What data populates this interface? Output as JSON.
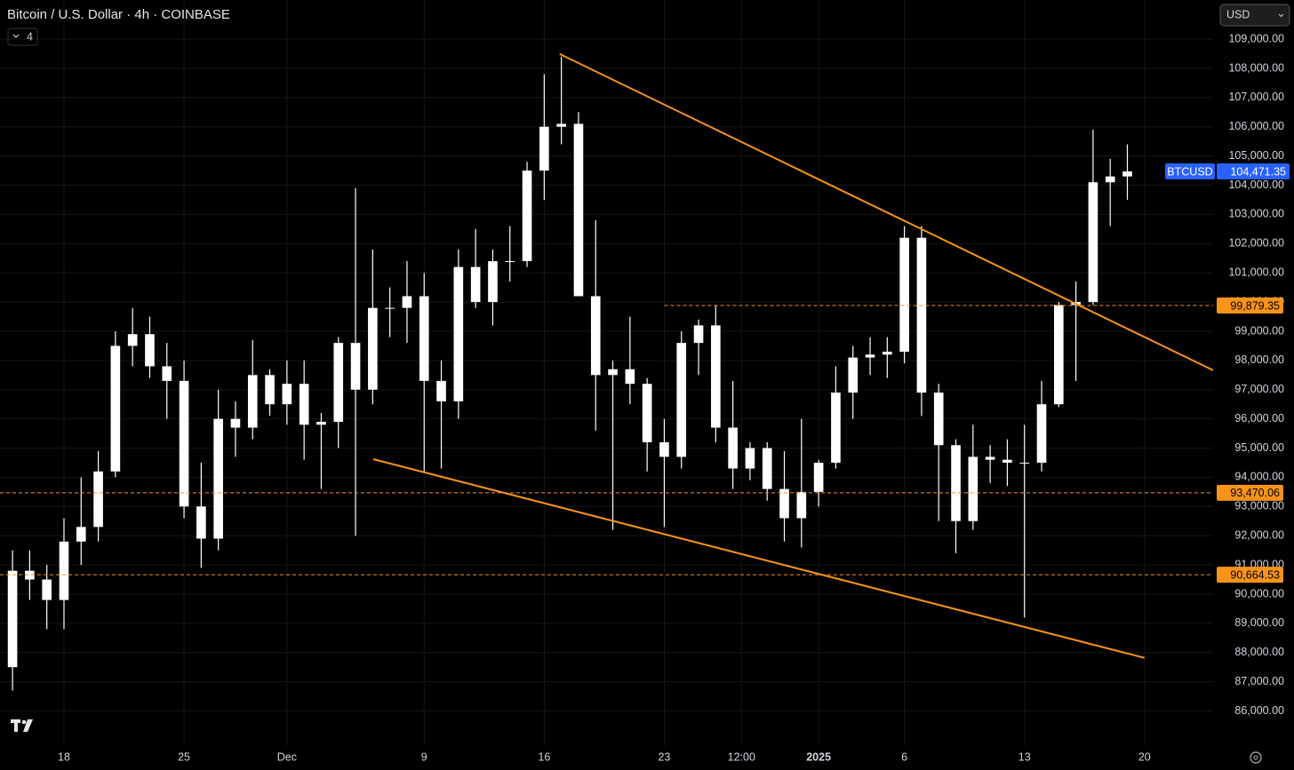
{
  "chart_data": {
    "type": "candlestick",
    "title": "Bitcoin / U.S. Dollar · 4h · COINBASE",
    "indicator_count": "4",
    "currency": "USD",
    "candle_color": "#ffffff",
    "grid": true,
    "x": [
      1,
      2,
      3,
      4,
      5,
      6,
      7,
      8,
      9,
      10,
      11,
      12,
      13,
      14,
      15,
      16,
      17,
      18,
      19,
      20,
      21,
      22,
      23,
      24,
      25,
      26,
      27,
      28,
      29,
      30,
      31,
      32,
      33,
      34,
      35,
      36,
      37,
      38,
      39,
      40,
      41,
      42,
      43,
      44,
      45,
      46,
      47,
      48,
      49,
      50,
      51,
      52,
      53,
      54,
      55,
      56,
      57,
      58,
      59,
      60,
      61,
      62,
      63,
      64,
      65,
      66
    ],
    "open": [
      87500,
      90800,
      90500,
      89800,
      91800,
      92300,
      94200,
      98500,
      98900,
      97800,
      97300,
      93000,
      91900,
      96000,
      95700,
      97500,
      96500,
      97200,
      95800,
      95900,
      98600,
      97000,
      99800,
      99800,
      100200,
      97300,
      96600,
      101200,
      100000,
      101400,
      101400,
      104500,
      106000,
      106100,
      100200,
      97500,
      97700,
      97200,
      95200,
      94700,
      98600,
      99200,
      95700,
      94300,
      95000,
      93600,
      92600,
      93500,
      94500,
      96900,
      98100,
      98200,
      98300,
      102200,
      96900,
      95100,
      92500,
      94700,
      94600,
      94500,
      94500,
      96500,
      99900,
      100000,
      104100,
      104300
    ],
    "high": [
      91500,
      91500,
      91000,
      92600,
      94000,
      94900,
      99000,
      99800,
      99500,
      98600,
      98000,
      94500,
      97000,
      96600,
      98700,
      97700,
      98000,
      98000,
      96200,
      98800,
      103900,
      101800,
      100500,
      101400,
      101000,
      98000,
      101800,
      102500,
      101800,
      102600,
      104800,
      107800,
      108400,
      106500,
      102800,
      98000,
      99500,
      97400,
      96000,
      99000,
      99400,
      99900,
      97300,
      95200,
      95200,
      94900,
      96000,
      94600,
      97800,
      98500,
      98800,
      98800,
      102600,
      102600,
      97200,
      95300,
      95800,
      95100,
      95300,
      95800,
      97300,
      100000,
      100700,
      105900,
      104900,
      105400
    ],
    "low": [
      86700,
      89800,
      88800,
      88800,
      91000,
      91800,
      94000,
      97800,
      97400,
      96000,
      92600,
      90900,
      91500,
      94700,
      95300,
      96100,
      95800,
      94600,
      93600,
      95000,
      92000,
      96500,
      98800,
      98600,
      94200,
      94300,
      96000,
      99800,
      99200,
      100700,
      101200,
      103500,
      105400,
      100200,
      95600,
      92200,
      96500,
      94200,
      92300,
      94300,
      97500,
      95200,
      93600,
      93900,
      93200,
      91800,
      91600,
      93000,
      94300,
      96000,
      97500,
      97400,
      97900,
      96100,
      92500,
      91400,
      92200,
      93800,
      93700,
      89200,
      94200,
      96400,
      97300,
      99900,
      102600,
      103500
    ],
    "close": [
      90800,
      90500,
      89800,
      91800,
      92300,
      94200,
      98500,
      98900,
      97800,
      97300,
      93000,
      91900,
      96000,
      95700,
      97500,
      96500,
      97200,
      95800,
      95900,
      98600,
      97000,
      99800,
      99800,
      100200,
      97300,
      96600,
      101200,
      100000,
      101400,
      101400,
      104500,
      106000,
      106100,
      100200,
      97500,
      97700,
      97200,
      95200,
      94700,
      98600,
      99200,
      95700,
      94300,
      95000,
      93600,
      92600,
      93500,
      94500,
      96900,
      98100,
      98200,
      98300,
      102200,
      96900,
      95100,
      92500,
      94700,
      94600,
      94500,
      94500,
      96500,
      99900,
      100000,
      104100,
      104300,
      104471.35
    ],
    "xlim": [
      0.27,
      71
    ],
    "xticks": [
      {
        "value": 4,
        "label": "18"
      },
      {
        "value": 11,
        "label": "25"
      },
      {
        "value": 17,
        "label": "Dec"
      },
      {
        "value": 25,
        "label": "9"
      },
      {
        "value": 32,
        "label": "16"
      },
      {
        "value": 39,
        "label": "23"
      },
      {
        "value": 43.5,
        "label": "12:00"
      },
      {
        "value": 48,
        "label": "2025"
      },
      {
        "value": 53,
        "label": "6"
      },
      {
        "value": 60,
        "label": "13"
      },
      {
        "value": 67,
        "label": "20"
      }
    ],
    "ylim": [
      84800,
      110340
    ],
    "yticks": [
      {
        "value": 86000,
        "label": "86,000.00"
      },
      {
        "value": 87000,
        "label": "87,000.00"
      },
      {
        "value": 88000,
        "label": "88,000.00"
      },
      {
        "value": 89000,
        "label": "89,000.00"
      },
      {
        "value": 90000,
        "label": "90,000.00"
      },
      {
        "value": 91000,
        "label": "91,000.00"
      },
      {
        "value": 92000,
        "label": "92,000.00"
      },
      {
        "value": 93000,
        "label": "93,000.00"
      },
      {
        "value": 94000,
        "label": "94,000.00"
      },
      {
        "value": 95000,
        "label": "95,000.00"
      },
      {
        "value": 96000,
        "label": "96,000.00"
      },
      {
        "value": 97000,
        "label": "97,000.00"
      },
      {
        "value": 98000,
        "label": "98,000.00"
      },
      {
        "value": 99000,
        "label": "99,000.00"
      },
      {
        "value": 100000,
        "label": "100,000.00"
      },
      {
        "value": 101000,
        "label": "101,000.00"
      },
      {
        "value": 102000,
        "label": "102,000.00"
      },
      {
        "value": 103000,
        "label": "103,000.00"
      },
      {
        "value": 104000,
        "label": "104,000.00"
      },
      {
        "value": 105000,
        "label": "105,000.00"
      },
      {
        "value": 106000,
        "label": "106,000.00"
      },
      {
        "value": 107000,
        "label": "107,000.00"
      },
      {
        "value": 108000,
        "label": "108,000.00"
      },
      {
        "value": 109000,
        "label": "109,000.00"
      }
    ],
    "trendline_color": "#f7931a",
    "trendlines": [
      {
        "x": [
          32.9,
          71
        ],
        "y": [
          108493,
          97664
        ]
      },
      {
        "x": [
          22.03,
          67
        ],
        "y": [
          94621,
          87818
        ]
      }
    ],
    "levels": [
      {
        "value": 99879.35,
        "label": "99,879.35",
        "from": 39
      },
      {
        "value": 93470.06,
        "label": "93,470.06",
        "from": 0.27
      },
      {
        "value": 90664.53,
        "label": "90,664.53",
        "from": 0.27
      }
    ],
    "last_price": {
      "name": "BTCUSD",
      "value": 104471.35,
      "label": "104,471.35",
      "color": "#2962ff"
    }
  }
}
